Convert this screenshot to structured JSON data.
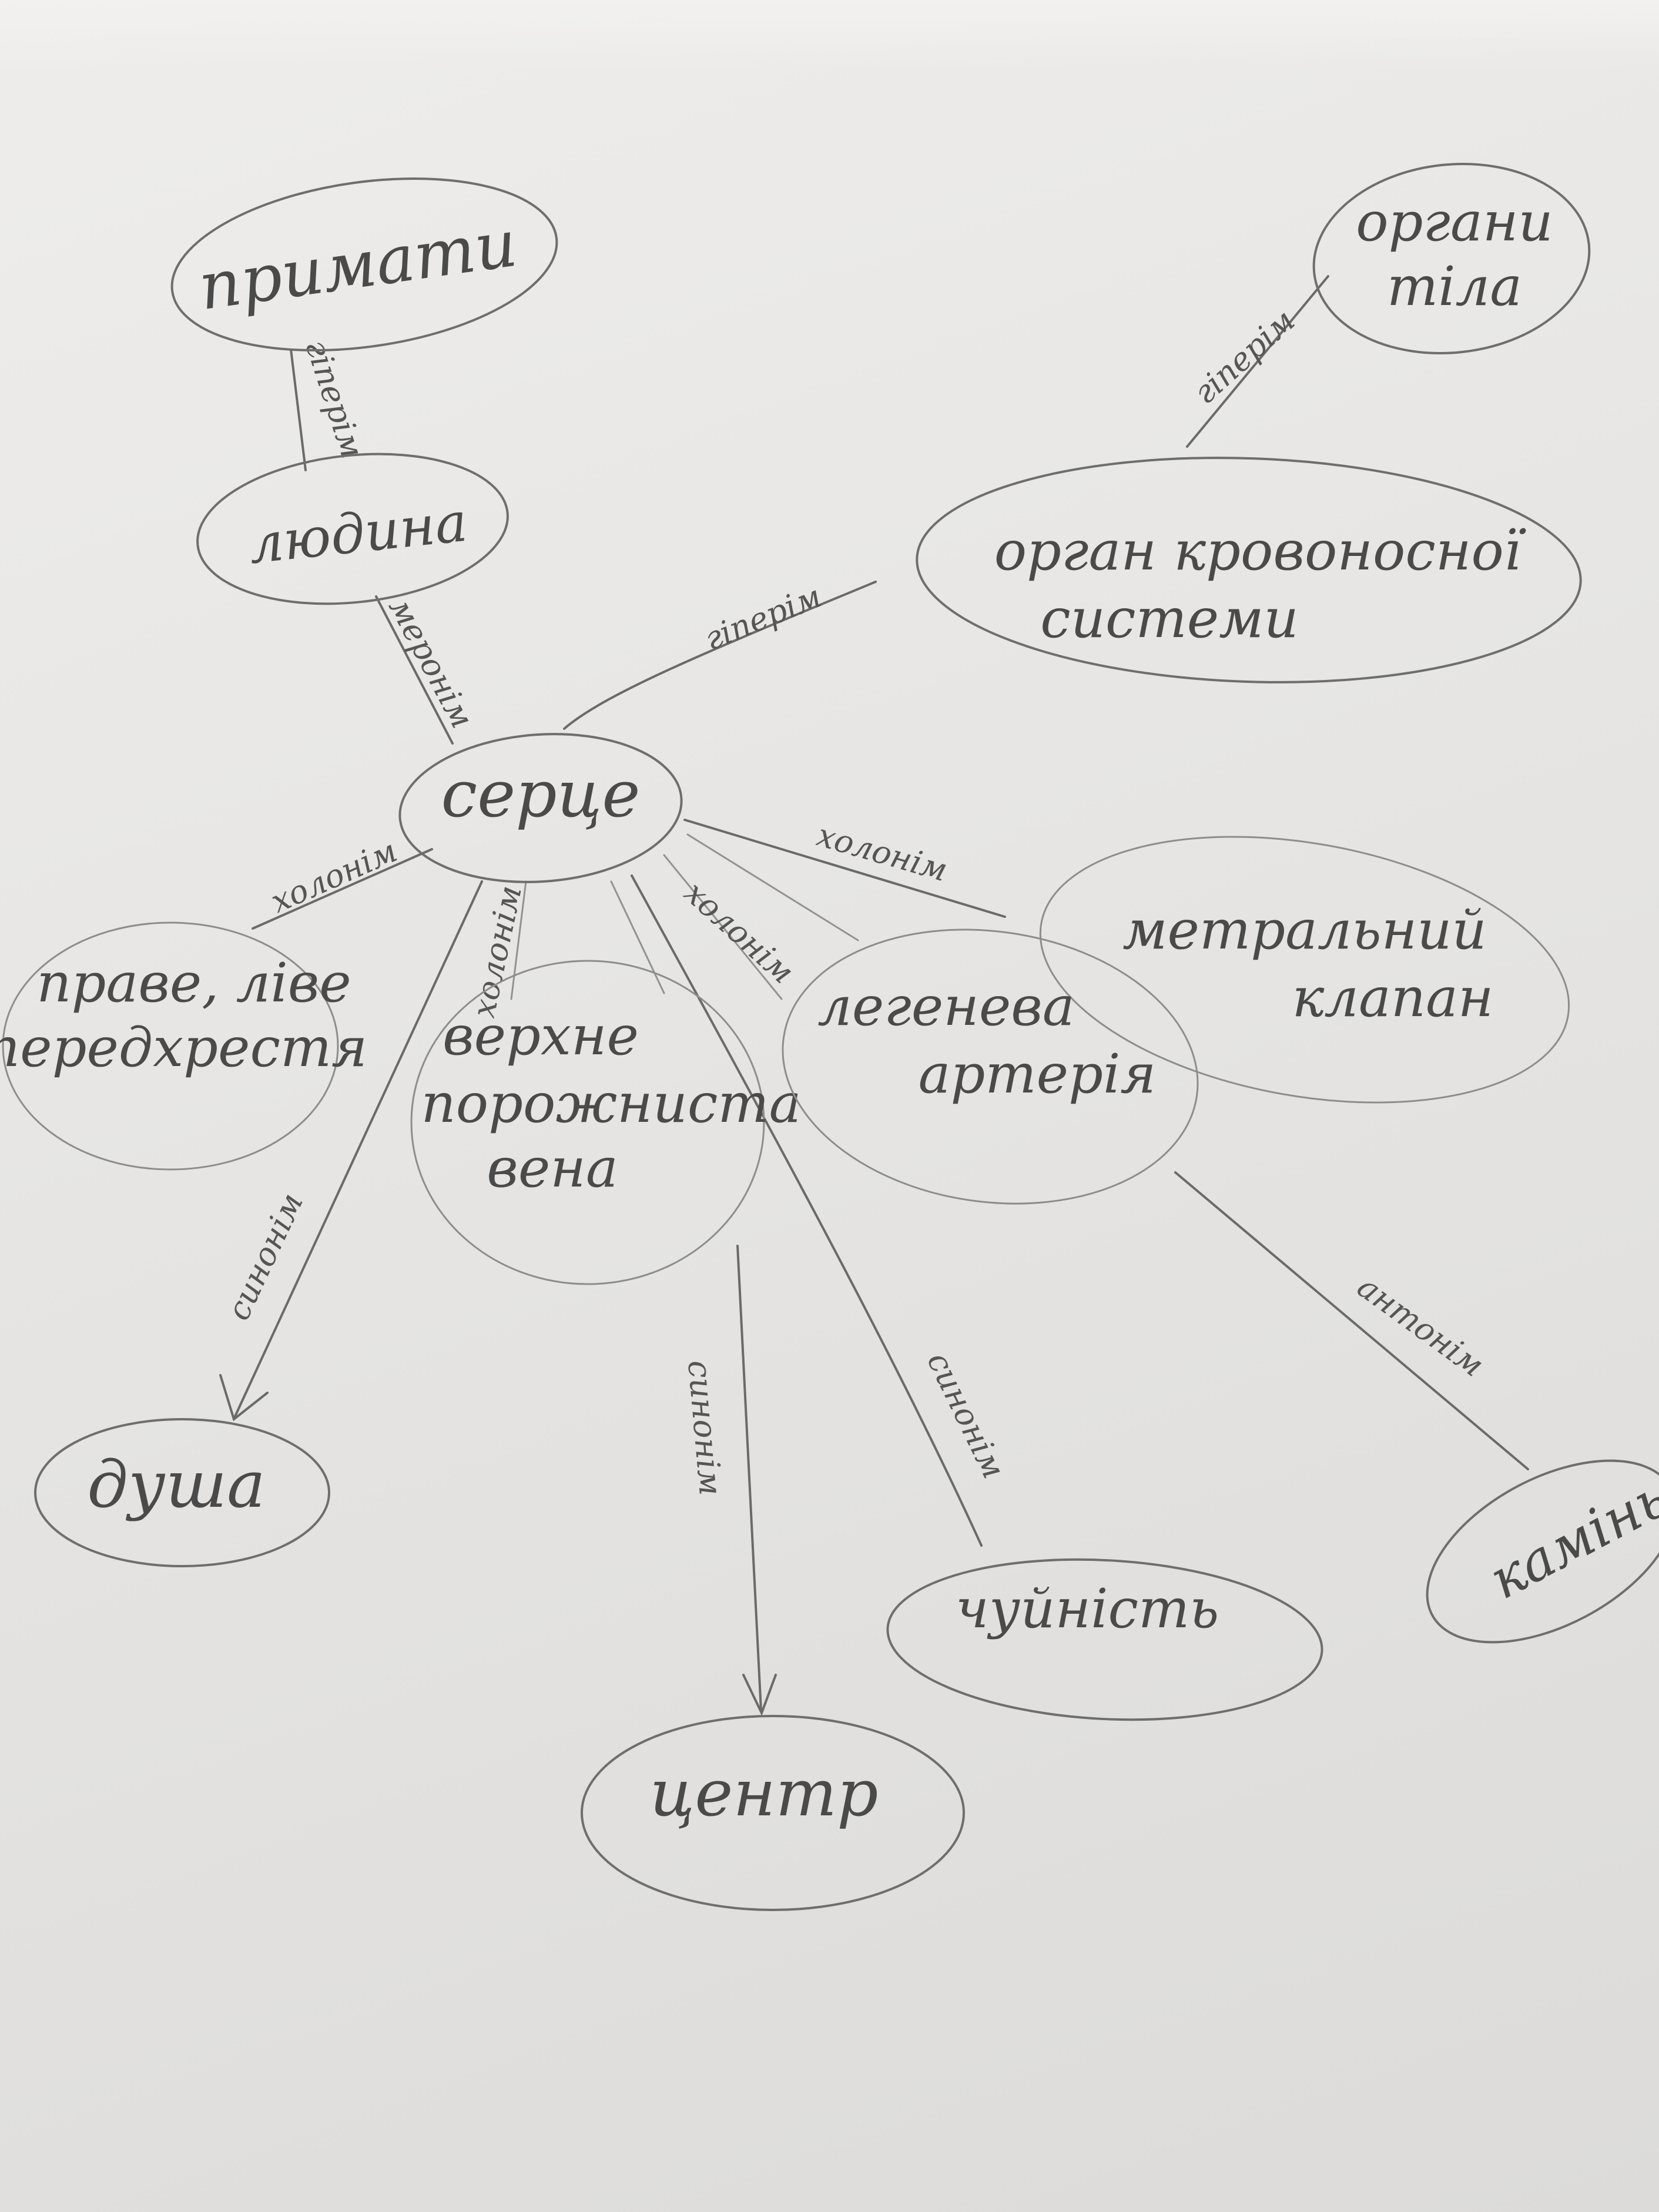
{
  "nodes": {
    "primaty": "примати",
    "liudyna": "людина",
    "orhany_tila_1": "органи",
    "orhany_tila_2": "тіла",
    "orhan_krovonosnoi_1": "орган кровоносної",
    "orhan_krovonosnoi_2": "системи",
    "sertse": "серце",
    "mitralnyi_1": "метральний",
    "mitralnyi_2": "клапан",
    "prave_live_1": "праве, ліве",
    "prave_live_2": "передхрестя",
    "verkhnia_1": "верхне",
    "verkhnia_2": "порожниста",
    "verkhnia_3": "вена",
    "lehenieva_1": "легенева",
    "lehenieva_2": "артерія",
    "dusha": "душа",
    "chuinist": "чуйність",
    "tsentr": "центр",
    "kamin": "камінь"
  },
  "edges": {
    "hiperonim_1": "гіперім",
    "hiperonim_2": "гіперім",
    "hiperonim_3": "гіперім",
    "meronim": "меронім",
    "kholonim_1": "холонім",
    "kholonim_2": "холонім",
    "kholonim_3": "холонім",
    "kholonim_4": "холонім",
    "synonim_1": "синонім",
    "synonim_2": "синонім",
    "synonim_3": "синонім",
    "antonim": "антонім"
  }
}
